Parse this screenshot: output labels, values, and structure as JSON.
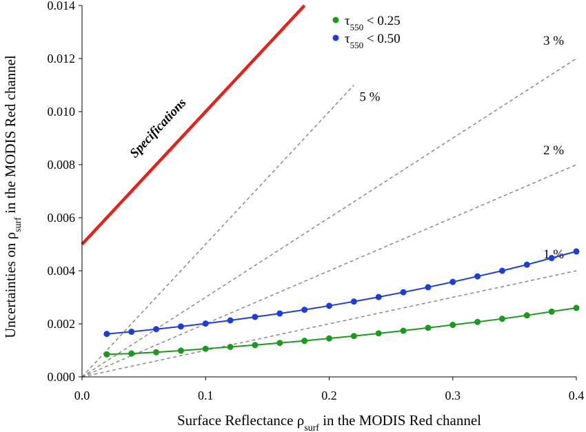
{
  "chart_data": {
    "type": "line",
    "xlabel": {
      "pre": "Surface Reflectance ρ",
      "sub": "surf",
      "post": " in the MODIS Red channel"
    },
    "ylabel": {
      "pre": "Uncertainties on ρ",
      "sub": "surf",
      "post": " in the MODIS Red channel"
    },
    "xlim": [
      0,
      0.4
    ],
    "ylim": [
      0,
      0.014
    ],
    "x_ticks": [
      "0.0",
      "0.1",
      "0.2",
      "0.3",
      "0.4"
    ],
    "x_tick_values": [
      0,
      0.1,
      0.2,
      0.3,
      0.4
    ],
    "y_ticks": [
      "0.000",
      "0.002",
      "0.004",
      "0.006",
      "0.008",
      "0.010",
      "0.012",
      "0.014"
    ],
    "y_tick_values": [
      0,
      0.002,
      0.004,
      0.006,
      0.008,
      0.01,
      0.012,
      0.014
    ],
    "grid": false,
    "legend_position": "top-center",
    "series": [
      {
        "name": {
          "pre": "τ",
          "sub": "550",
          "post": " < 0.25"
        },
        "color": "#1a9a1a",
        "x": [
          0.02,
          0.04,
          0.06,
          0.08,
          0.1,
          0.12,
          0.14,
          0.16,
          0.18,
          0.2,
          0.22,
          0.24,
          0.26,
          0.28,
          0.3,
          0.32,
          0.34,
          0.36,
          0.38,
          0.4
        ],
        "y": [
          0.00085,
          0.00088,
          0.00093,
          0.00099,
          0.00106,
          0.00113,
          0.0012,
          0.00128,
          0.00136,
          0.00145,
          0.00154,
          0.00164,
          0.00174,
          0.00185,
          0.00196,
          0.00207,
          0.00219,
          0.00232,
          0.00246,
          0.0026
        ]
      },
      {
        "name": {
          "pre": "τ",
          "sub": "550",
          "post": " < 0.50"
        },
        "color": "#1c3cdc",
        "x": [
          0.02,
          0.04,
          0.06,
          0.08,
          0.1,
          0.12,
          0.14,
          0.16,
          0.18,
          0.2,
          0.22,
          0.24,
          0.26,
          0.28,
          0.3,
          0.32,
          0.34,
          0.36,
          0.38,
          0.4
        ],
        "y": [
          0.00162,
          0.0017,
          0.0018,
          0.0019,
          0.00201,
          0.00213,
          0.00226,
          0.00239,
          0.00253,
          0.00268,
          0.00284,
          0.00301,
          0.00319,
          0.00338,
          0.00358,
          0.00379,
          0.004,
          0.00423,
          0.00448,
          0.00473
        ]
      }
    ],
    "reference_lines": [
      {
        "label": "1 %",
        "slope": 0.01,
        "x_end": 0.4
      },
      {
        "label": "2 %",
        "slope": 0.02,
        "x_end": 0.4
      },
      {
        "label": "3 %",
        "slope": 0.03,
        "x_end": 0.4
      },
      {
        "label": "5 %",
        "slope": 0.05,
        "x_end": 0.22
      }
    ],
    "specification": {
      "label": "Specifications",
      "color": "#e8201a",
      "intercept": 0.005,
      "slope": 0.05
    }
  }
}
